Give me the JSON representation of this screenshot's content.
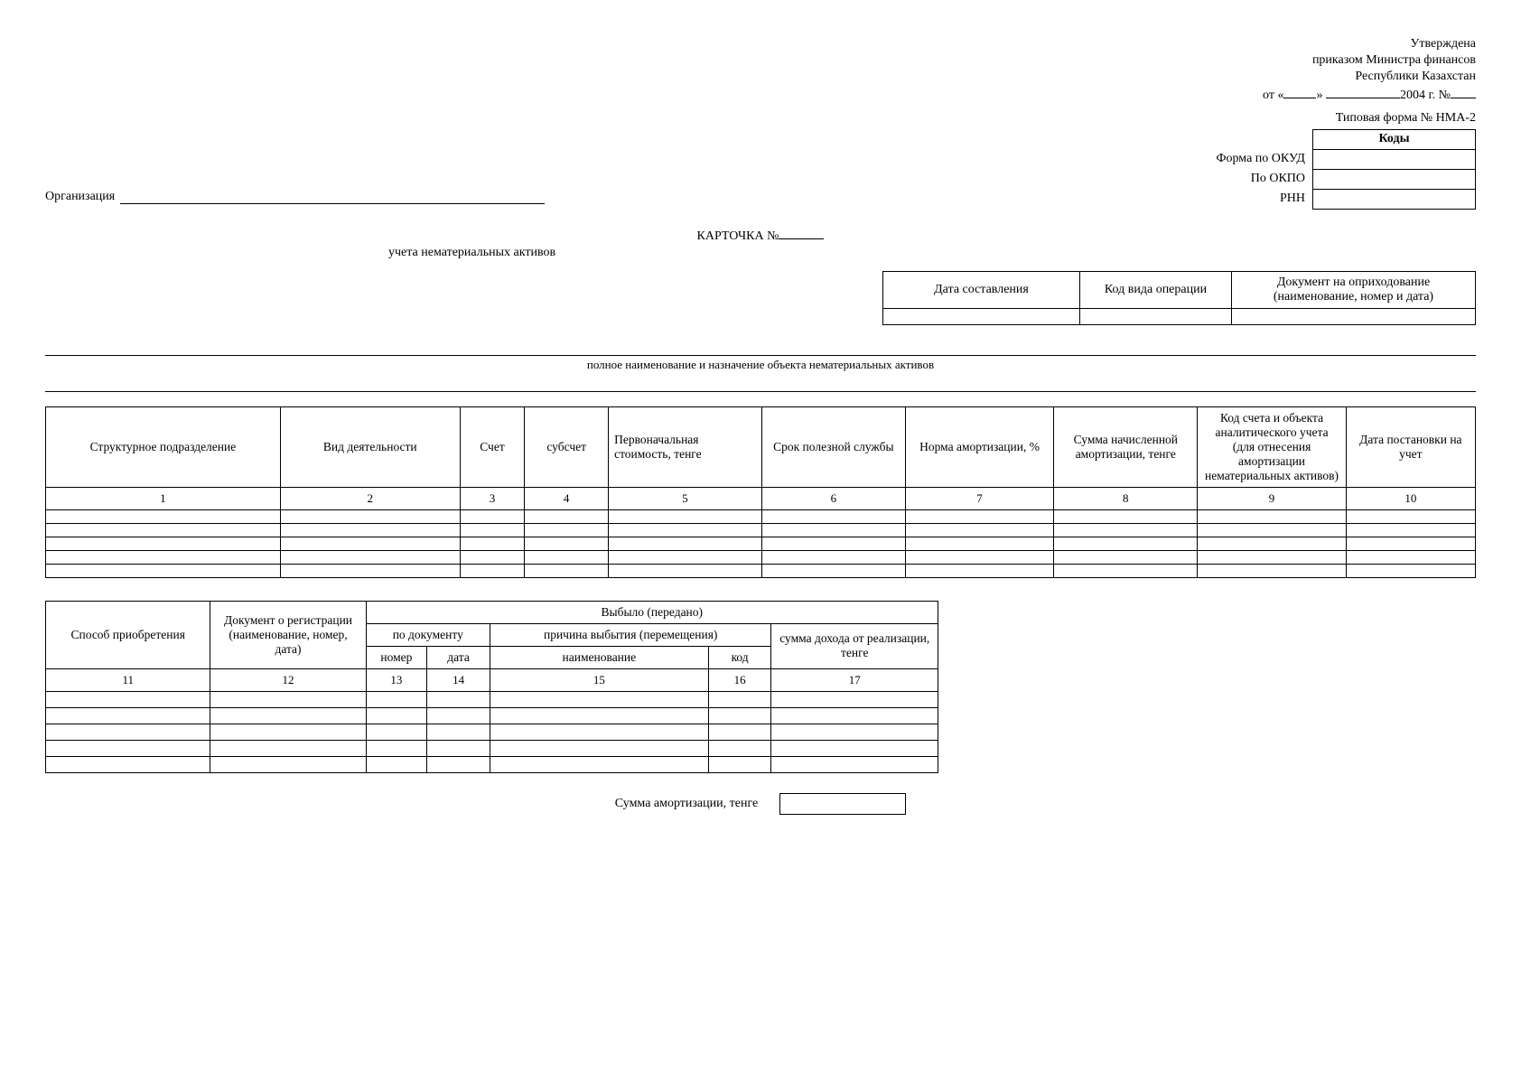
{
  "approval": {
    "line1": "Утверждена",
    "line2": "приказом Министра финансов",
    "line3": "Республики Казахстан",
    "line4_prefix": "от «",
    "line4_mid": "» ",
    "line4_year": "2004  г.  №"
  },
  "typeform": "Типовая форма № НМА-2",
  "codes": {
    "header": "Коды",
    "rows": [
      "Форма по ОКУД",
      "По ОКПО",
      "РНН"
    ],
    "values": [
      "",
      "",
      ""
    ]
  },
  "org_label": "Организация",
  "card": {
    "title": "КАРТОЧКА №",
    "subtitle": "учета нематериальных активов"
  },
  "top_table": {
    "h1": "Дата составления",
    "h2": "Код вида операции",
    "h3": "Документ на оприходование (наименование, номер и дата)",
    "v1": "",
    "v2": "",
    "v3": ""
  },
  "fullname_caption": "полное наименование и назначение объекта нематериальных активов",
  "main_table": {
    "headers": [
      "Структурное подразделение",
      "Вид деятельности",
      "Счет",
      "субсчет",
      "Первоначальная стоимость, тенге",
      "Срок полезной службы",
      "Норма амортизации, %",
      "Сумма начисленной амортизации, тенге",
      "Код счета и объекта аналитического учета (для отнесения амортизации нематериальных активов)",
      "Дата постановки на учет"
    ],
    "nums": [
      "1",
      "2",
      "3",
      "4",
      "5",
      "6",
      "7",
      "8",
      "9",
      "10"
    ],
    "empty_rows": 5
  },
  "second_table": {
    "hdr_sposob": "Способ приобретения",
    "hdr_doc": "Документ о регистрации (наименование, номер, дата)",
    "hdr_vybylo": "Выбыло (передано)",
    "hdr_podoc": "по документу",
    "hdr_reason": "причина выбытия (перемещения)",
    "hdr_sum": "сумма дохода от реализации, тенге",
    "hdr_nomer": "номер",
    "hdr_data": "дата",
    "hdr_naim": "наименование",
    "hdr_kod": "код",
    "nums": [
      "11",
      "12",
      "13",
      "14",
      "15",
      "16",
      "17"
    ],
    "empty_rows": 5
  },
  "amort_label": "Сумма амортизации, тенге",
  "amort_value": ""
}
